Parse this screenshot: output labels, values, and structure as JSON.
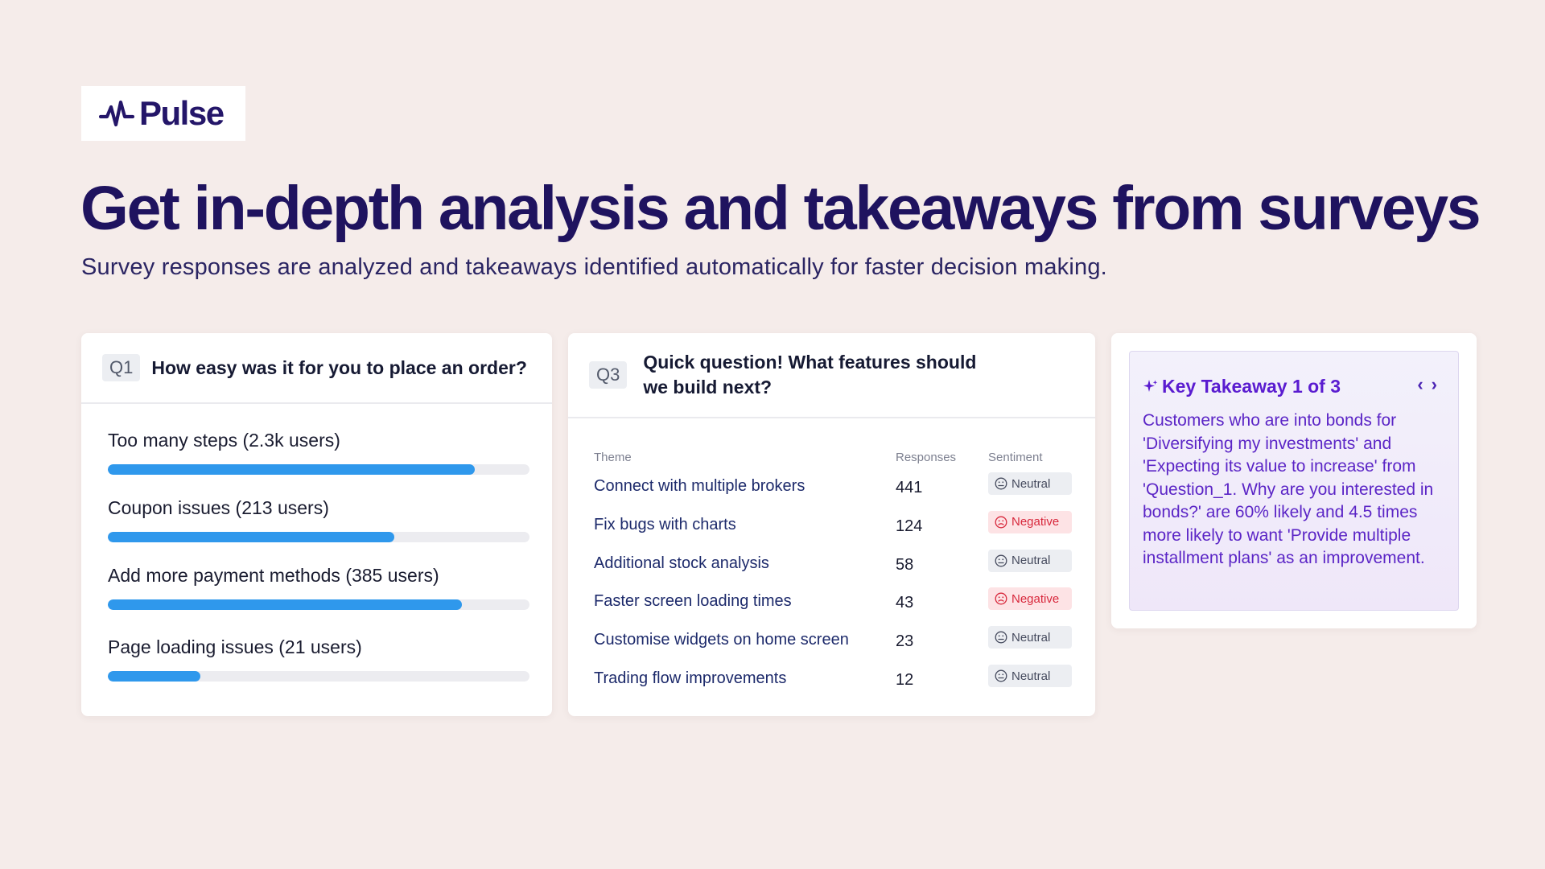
{
  "brand": {
    "name": "Pulse",
    "logo_icon": "pulse-wave-icon",
    "color": "#241669"
  },
  "hero": {
    "title": "Get in-depth analysis and takeaways from surveys",
    "subtitle": "Survey responses are analyzed and takeaways identified automatically for faster decision making."
  },
  "q1": {
    "badge": "Q1",
    "question": "How easy was it for you to place an order?",
    "bars": [
      {
        "label": "Too many steps (2.3k users)",
        "fill": 0.87
      },
      {
        "label": "Coupon issues (213 users)",
        "fill": 0.68
      },
      {
        "label": "Add more payment methods (385 users)",
        "fill": 0.84
      },
      {
        "label": "Page loading issues (21 users)",
        "fill": 0.22
      }
    ],
    "bar_color": "#2f98ec"
  },
  "q3": {
    "badge": "Q3",
    "question": "Quick question!  What features should we build next?",
    "columns": {
      "theme": "Theme",
      "responses": "Responses",
      "sentiment": "Sentiment"
    },
    "rows": [
      {
        "theme": "Connect with multiple brokers",
        "responses": "441",
        "sentiment": "Neutral",
        "type": "neutral"
      },
      {
        "theme": "Fix bugs with charts",
        "responses": "124",
        "sentiment": "Negative",
        "type": "negative"
      },
      {
        "theme": "Additional stock analysis",
        "responses": "58",
        "sentiment": "Neutral",
        "type": "neutral"
      },
      {
        "theme": "Faster screen loading times",
        "responses": "43",
        "sentiment": "Negative",
        "type": "negative"
      },
      {
        "theme": "Customise widgets on home screen",
        "responses": "23",
        "sentiment": "Neutral",
        "type": "neutral"
      },
      {
        "theme": "Trading flow improvements",
        "responses": "12",
        "sentiment": "Neutral",
        "type": "neutral"
      }
    ],
    "colors": {
      "negative": "#d8283c",
      "neutral": "#464b5e"
    }
  },
  "takeaway": {
    "title": "Key Takeaway 1 of 3",
    "icon": "sparkle-icon",
    "prev_icon": "chevron-left-icon",
    "next_icon": "chevron-right-icon",
    "body": "Customers who are into bonds for 'Diversifying my investments' and 'Expecting its value to increase' from 'Question_1. Why are you interested in bonds?' are 60% likely and 4.5 times more likely to want 'Provide multiple installment plans' as an improvement.",
    "accent": "#5a1cd0"
  }
}
